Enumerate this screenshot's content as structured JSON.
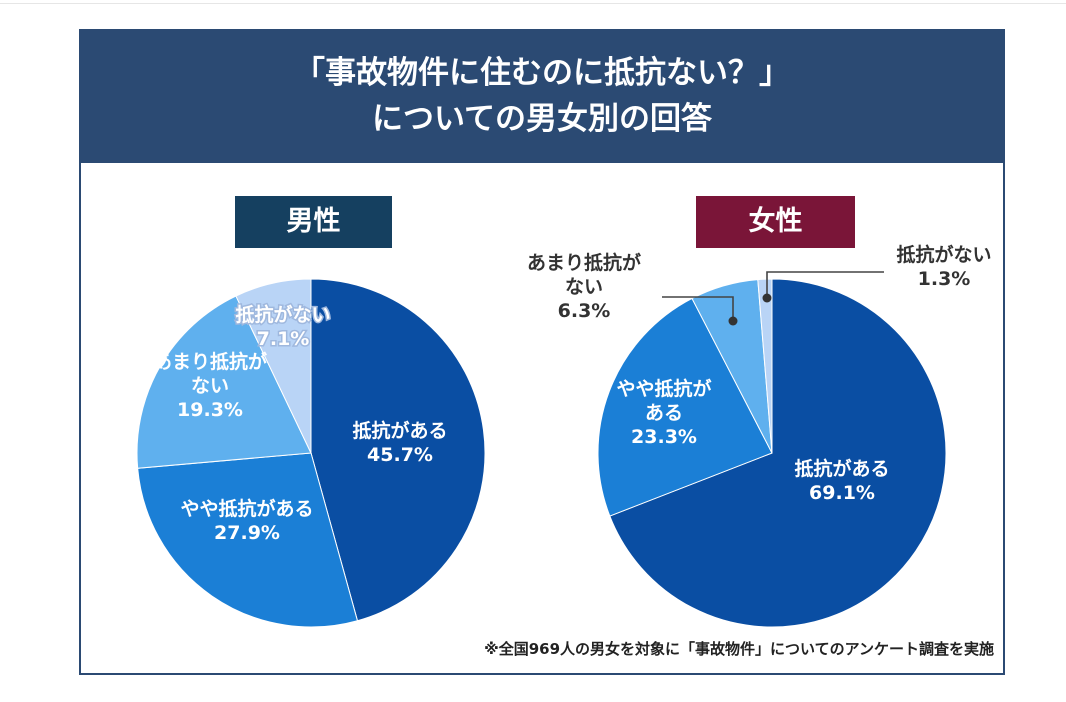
{
  "title_lines": [
    "「事故物件に住むのに抵抗ない？」",
    "についての男女別の回答"
  ],
  "footnote": "※全国969人の男女を対象に「事故物件」についてのアンケート調査を実施",
  "colors": {
    "header": "#2b4a73",
    "male_tag": "#154060",
    "female_tag": "#7a1538",
    "slices": [
      "#0a4ea3",
      "#1b7fd6",
      "#5fb0ee",
      "#b9d4f6"
    ]
  },
  "chart_data": [
    {
      "type": "pie",
      "title": "男性",
      "slices": [
        {
          "label_lines": [
            "抵抗がある"
          ],
          "value": 45.7,
          "value_text": "45.7%"
        },
        {
          "label_lines": [
            "やや抵抗がある"
          ],
          "value": 27.9,
          "value_text": "27.9%"
        },
        {
          "label_lines": [
            "あまり抵抗が",
            "ない"
          ],
          "value": 19.3,
          "value_text": "19.3%"
        },
        {
          "label_lines": [
            "抵抗がない"
          ],
          "value": 7.1,
          "value_text": "7.1%"
        }
      ]
    },
    {
      "type": "pie",
      "title": "女性",
      "slices": [
        {
          "label_lines": [
            "抵抗がある"
          ],
          "value": 69.1,
          "value_text": "69.1%"
        },
        {
          "label_lines": [
            "やや抵抗が",
            "ある"
          ],
          "value": 23.3,
          "value_text": "23.3%"
        },
        {
          "label_lines": [
            "あまり抵抗が",
            "ない"
          ],
          "value": 6.3,
          "value_text": "6.3%"
        },
        {
          "label_lines": [
            "抵抗がない"
          ],
          "value": 1.3,
          "value_text": "1.3%"
        }
      ]
    }
  ]
}
